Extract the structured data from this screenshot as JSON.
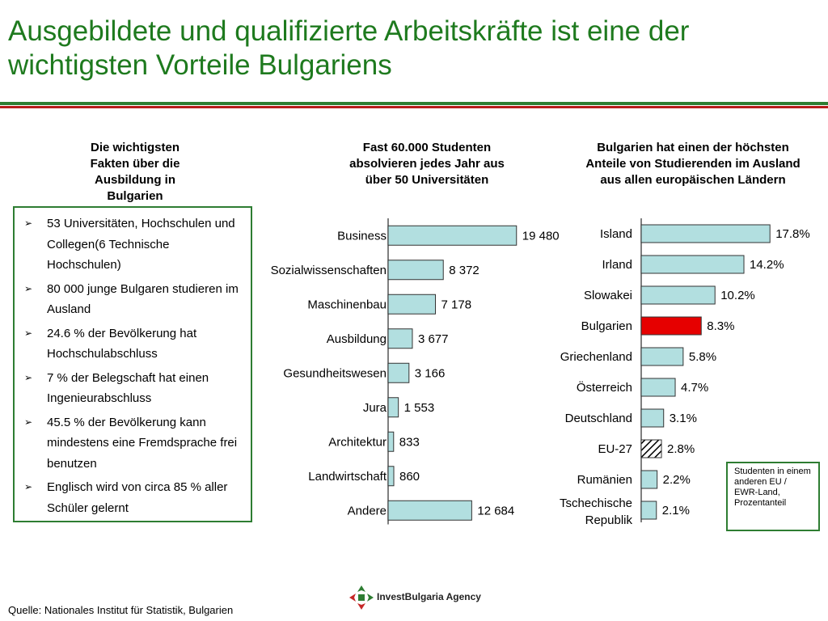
{
  "title": "Ausgebildete und qualifizierte Arbeitskräfte ist eine der wichtigsten Vorteile Bulgariens",
  "left_panel": {
    "heading": "Die wichtigsten Fakten über die Ausbildung in Bulgarien",
    "facts": [
      "53 Universitäten, Hochschulen und Collegen(6 Technische Hochschulen)",
      "80 000 junge Bulgaren studieren im Ausland",
      "24.6 % der Bevölkerung hat Hochschulabschluss",
      "7 % der Belegschaft hat einen Ingenieurabschluss",
      "45.5 %  der Bevölkerung kann mindestens eine Fremdsprache frei benutzen",
      "Englisch wird von circa  85 % aller Schüler gelernt"
    ]
  },
  "chart_data": [
    {
      "type": "bar",
      "orientation": "horizontal",
      "title": "Fast 60.000 Studenten absolvieren jedes Jahr aus über 50 Universitäten",
      "categories": [
        "Business",
        "Sozialwissenschaften",
        "Maschinenbau",
        "Ausbildung",
        "Gesundheitswesen",
        "Jura",
        "Architektur",
        "Landwirtschaft",
        "Andere"
      ],
      "values": [
        19480,
        8372,
        7178,
        3677,
        3166,
        1553,
        833,
        860,
        12684
      ],
      "labels": [
        "19 480",
        "8 372",
        "7 178",
        "3 677",
        "3 166",
        "1 553",
        "833",
        "860",
        "12 684"
      ],
      "bar_color": "#b2dfe0",
      "xlim": [
        0,
        20000
      ],
      "grid": false
    },
    {
      "type": "bar",
      "orientation": "horizontal",
      "title": "Bulgarien hat einen der höchsten Anteile von Studierenden im Ausland aus allen europäischen Ländern",
      "categories": [
        "Island",
        "Irland",
        "Slowakei",
        "Bulgarien",
        "Griechenland",
        "Österreich",
        "Deutschland",
        "EU-27",
        "Rumänien",
        "Tschechische Republik"
      ],
      "values": [
        17.8,
        14.2,
        10.2,
        8.3,
        5.8,
        4.7,
        3.1,
        2.8,
        2.2,
        2.1
      ],
      "labels": [
        "17.8%",
        "14.2%",
        "10.2%",
        "8.3%",
        "5.8%",
        "4.7%",
        "3.1%",
        "2.8%",
        "2.2%",
        "2.1%"
      ],
      "bar_color": "#b2dfe0",
      "highlight": {
        "Bulgarien": "#e60000",
        "EU-27": "hatched"
      },
      "xlim": [
        0,
        18
      ],
      "grid": false,
      "legend_note": "Studenten in einem anderen EU / EWR-Land, Prozentanteil",
      "legend_placement": "bottom-right"
    }
  ],
  "footer": {
    "source_label": "Quelle:",
    "source_text": "Nationales Institut für Statistik, Bulgarien",
    "logo_text": "InvestBulgaria Agency"
  },
  "colors": {
    "title": "#1e7a1e",
    "rule_green": "#2e7d32",
    "rule_red": "#b71c1c",
    "bar": "#b2dfe0",
    "highlight": "#e60000"
  },
  "icons": {
    "bullet": "arrow-bullet-icon",
    "logo": "investbulgaria-logo-icon"
  }
}
